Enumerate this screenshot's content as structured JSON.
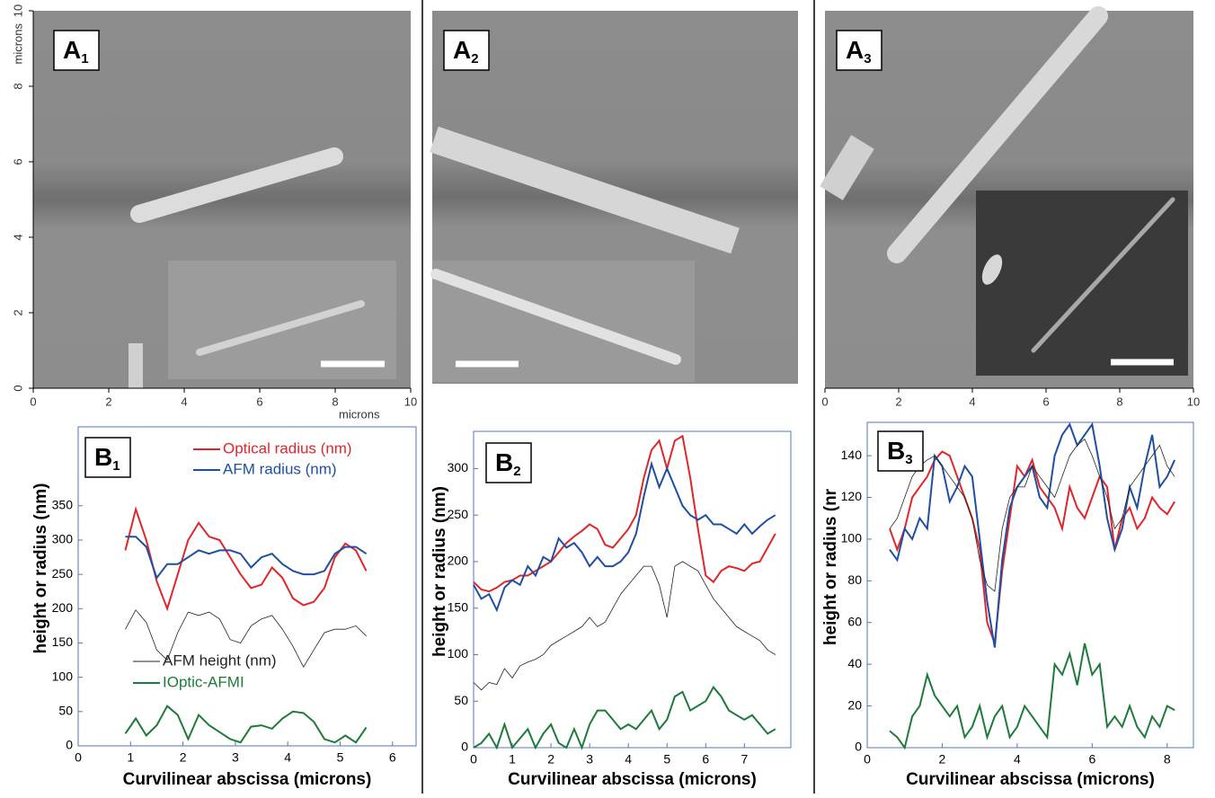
{
  "chart_data": [
    {
      "type": "image",
      "panel_label": {
        "main": "A",
        "sub": "1"
      },
      "xlim": [
        0,
        10
      ],
      "ylim": [
        0,
        10
      ],
      "xticks": [
        0,
        2,
        4,
        6,
        8,
        10
      ],
      "yticks": [
        0,
        2,
        4,
        6,
        8,
        10
      ],
      "xlabel": "microns",
      "ylabel": "microns"
    },
    {
      "type": "image",
      "panel_label": {
        "main": "A",
        "sub": "2"
      }
    },
    {
      "type": "image",
      "panel_label": {
        "main": "A",
        "sub": "3"
      },
      "xlim": [
        0,
        10
      ],
      "xticks": [
        0,
        2,
        4,
        6,
        8,
        10
      ]
    },
    {
      "type": "line",
      "panel_label": {
        "main": "B",
        "sub": "1"
      },
      "xlabel": "Curvilinear abscissa (microns)",
      "ylabel": "height or radius (nm)",
      "xlim": [
        0,
        6.45
      ],
      "ylim": [
        0,
        465
      ],
      "xticks": [
        0,
        1,
        2,
        3,
        4,
        5,
        6
      ],
      "yticks": [
        0,
        50,
        100,
        150,
        200,
        250,
        300,
        350
      ],
      "x": [
        0.9,
        1.1,
        1.3,
        1.5,
        1.7,
        1.9,
        2.1,
        2.3,
        2.5,
        2.7,
        2.9,
        3.1,
        3.3,
        3.5,
        3.7,
        3.9,
        4.1,
        4.3,
        4.5,
        4.7,
        4.9,
        5.1,
        5.3,
        5.5
      ],
      "series": [
        {
          "name": "Optical radius (nm)",
          "color": "#e0262b",
          "values": [
            285,
            345,
            300,
            240,
            200,
            250,
            300,
            325,
            305,
            300,
            275,
            250,
            230,
            235,
            260,
            245,
            215,
            205,
            210,
            230,
            275,
            295,
            285,
            255
          ]
        },
        {
          "name": "AFM radius (nm)",
          "color": "#1f4fa3",
          "values": [
            305,
            305,
            290,
            245,
            265,
            265,
            275,
            285,
            280,
            285,
            285,
            280,
            260,
            275,
            280,
            265,
            255,
            250,
            250,
            255,
            280,
            290,
            290,
            280
          ]
        },
        {
          "name": "AFM height (nm)",
          "color": "#222222",
          "values": [
            170,
            198,
            180,
            140,
            125,
            165,
            195,
            190,
            195,
            185,
            155,
            150,
            175,
            185,
            190,
            170,
            145,
            115,
            140,
            165,
            170,
            170,
            175,
            160
          ]
        },
        {
          "name": "IOptic-AFMI",
          "color": "#1e7a3a",
          "values": [
            18,
            40,
            15,
            30,
            58,
            45,
            10,
            45,
            30,
            20,
            10,
            5,
            28,
            30,
            25,
            40,
            50,
            48,
            35,
            10,
            5,
            15,
            5,
            27
          ]
        }
      ]
    },
    {
      "type": "line",
      "panel_label": {
        "main": "B",
        "sub": "2"
      },
      "xlabel": "Curvilinear abscissa (microns)",
      "ylabel": "height or radius (nm)",
      "xlim": [
        0,
        8.2
      ],
      "ylim": [
        0,
        340
      ],
      "xticks": [
        0,
        1,
        2,
        3,
        4,
        5,
        6,
        7
      ],
      "yticks": [
        0,
        50,
        100,
        150,
        200,
        250,
        300
      ],
      "x": [
        0,
        0.2,
        0.4,
        0.6,
        0.8,
        1.0,
        1.2,
        1.4,
        1.6,
        1.8,
        2.0,
        2.2,
        2.4,
        2.6,
        2.8,
        3.0,
        3.2,
        3.4,
        3.6,
        3.8,
        4.0,
        4.2,
        4.4,
        4.6,
        4.8,
        5.0,
        5.2,
        5.4,
        5.6,
        5.8,
        6.0,
        6.2,
        6.4,
        6.6,
        6.8,
        7.0,
        7.2,
        7.4,
        7.6,
        7.8
      ],
      "series": [
        {
          "color": "#e0262b",
          "values": [
            178,
            170,
            168,
            172,
            178,
            180,
            185,
            185,
            190,
            195,
            200,
            210,
            220,
            227,
            233,
            240,
            235,
            218,
            215,
            225,
            235,
            250,
            290,
            320,
            330,
            300,
            330,
            335,
            290,
            235,
            185,
            178,
            190,
            195,
            193,
            190,
            198,
            200,
            215,
            230
          ]
        },
        {
          "color": "#1f4fa3",
          "values": [
            175,
            160,
            165,
            148,
            172,
            180,
            175,
            195,
            185,
            205,
            200,
            225,
            215,
            220,
            210,
            195,
            205,
            195,
            195,
            200,
            210,
            230,
            270,
            305,
            280,
            300,
            280,
            260,
            250,
            245,
            250,
            240,
            240,
            235,
            230,
            240,
            230,
            238,
            245,
            250
          ]
        },
        {
          "color": "#222222",
          "values": [
            70,
            62,
            70,
            68,
            85,
            75,
            88,
            92,
            95,
            100,
            110,
            115,
            120,
            125,
            130,
            140,
            130,
            135,
            150,
            165,
            175,
            185,
            195,
            195,
            175,
            140,
            195,
            200,
            195,
            190,
            175,
            160,
            150,
            140,
            130,
            125,
            120,
            115,
            105,
            100
          ]
        },
        {
          "color": "#1e7a3a",
          "values": [
            0,
            5,
            15,
            0,
            25,
            0,
            10,
            20,
            0,
            15,
            25,
            5,
            0,
            20,
            0,
            25,
            40,
            40,
            30,
            20,
            25,
            20,
            30,
            40,
            20,
            30,
            55,
            60,
            40,
            45,
            50,
            65,
            55,
            40,
            35,
            30,
            35,
            25,
            15,
            20
          ]
        }
      ]
    },
    {
      "type": "line",
      "panel_label": {
        "main": "B",
        "sub": "3"
      },
      "xlabel": "Curvilinear abscissa (microns)",
      "ylabel": "height or radius (nr",
      "xlim": [
        0,
        8.7
      ],
      "ylim": [
        0,
        156
      ],
      "xticks": [
        0,
        2,
        4,
        6,
        8
      ],
      "yticks": [
        0,
        20,
        40,
        60,
        80,
        100,
        120,
        140
      ],
      "x": [
        0.6,
        0.8,
        1.0,
        1.2,
        1.4,
        1.6,
        1.8,
        2.0,
        2.2,
        2.4,
        2.6,
        2.8,
        3.0,
        3.2,
        3.4,
        3.6,
        3.8,
        4.0,
        4.2,
        4.4,
        4.6,
        4.8,
        5.0,
        5.2,
        5.4,
        5.6,
        5.8,
        6.0,
        6.2,
        6.4,
        6.6,
        6.8,
        7.0,
        7.2,
        7.4,
        7.6,
        7.8,
        8.0,
        8.2
      ],
      "series": [
        {
          "color": "#e0262b",
          "values": [
            105,
            95,
            105,
            120,
            125,
            130,
            138,
            142,
            140,
            130,
            120,
            110,
            95,
            60,
            50,
            85,
            110,
            135,
            130,
            138,
            125,
            120,
            115,
            105,
            125,
            115,
            110,
            120,
            130,
            125,
            95,
            110,
            115,
            105,
            110,
            120,
            115,
            112,
            118
          ]
        },
        {
          "color": "#1f4fa3",
          "values": [
            95,
            90,
            105,
            100,
            110,
            105,
            140,
            135,
            118,
            125,
            135,
            130,
            100,
            70,
            48,
            90,
            115,
            125,
            130,
            135,
            120,
            115,
            140,
            150,
            155,
            145,
            150,
            155,
            135,
            110,
            95,
            105,
            125,
            115,
            135,
            150,
            125,
            130,
            138
          ]
        },
        {
          "color": "#222222",
          "values": [
            105,
            110,
            120,
            130,
            135,
            138,
            140,
            135,
            130,
            125,
            120,
            110,
            90,
            78,
            75,
            105,
            120,
            125,
            125,
            135,
            130,
            125,
            120,
            130,
            140,
            145,
            148,
            140,
            130,
            120,
            105,
            110,
            125,
            130,
            135,
            140,
            145,
            135,
            130
          ]
        },
        {
          "color": "#1e7a3a",
          "values": [
            8,
            5,
            0,
            15,
            20,
            35,
            25,
            20,
            15,
            20,
            5,
            10,
            20,
            5,
            15,
            20,
            5,
            10,
            20,
            15,
            10,
            5,
            40,
            35,
            45,
            30,
            50,
            35,
            40,
            10,
            15,
            10,
            20,
            10,
            5,
            15,
            10,
            20,
            18
          ]
        }
      ]
    }
  ]
}
